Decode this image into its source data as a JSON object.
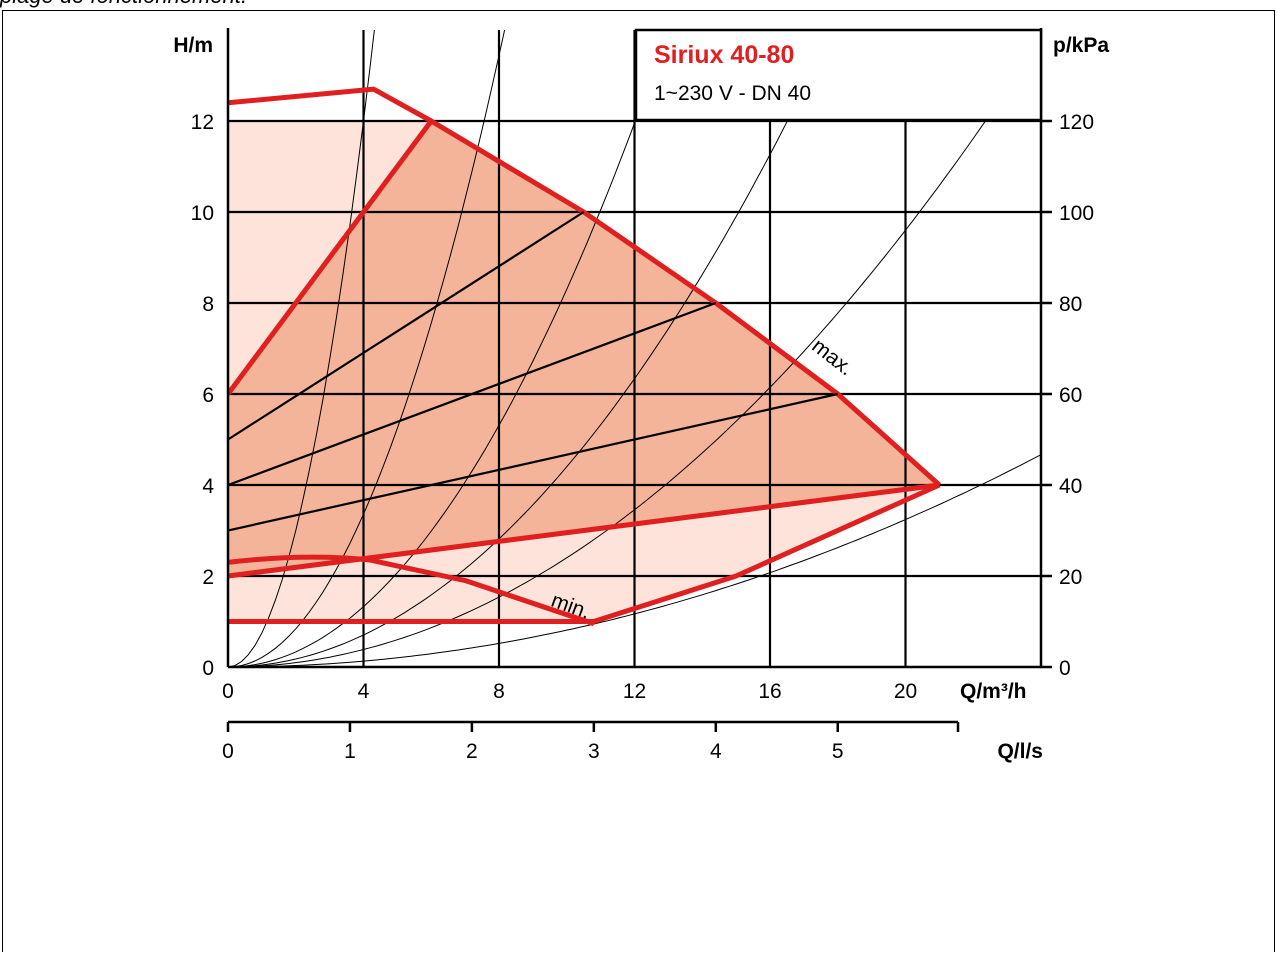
{
  "caption": "plage de fonctionnement.",
  "chart_data": {
    "type": "area",
    "title": "Siriux 40-80",
    "subtitle": "1~230 V - DN 40",
    "xlabel": "Q/m³/h",
    "x2label": "Q/l/s",
    "ylabel": "H/m",
    "y2label": "p/kPa",
    "xlim": [
      0,
      24
    ],
    "ylim": [
      0,
      14
    ],
    "x_ticks": [
      "0",
      "4",
      "8",
      "12",
      "16",
      "20"
    ],
    "x_tick_values": [
      0,
      4,
      8,
      12,
      16,
      20
    ],
    "x2_ticks": [
      "0",
      "1",
      "2",
      "3",
      "4",
      "5"
    ],
    "x2_tick_values": [
      0,
      1,
      2,
      3,
      4,
      5
    ],
    "y_ticks": [
      "0",
      "2",
      "4",
      "6",
      "8",
      "10",
      "12"
    ],
    "y_tick_values": [
      0,
      2,
      4,
      6,
      8,
      10,
      12
    ],
    "y2_ticks": [
      "0",
      "20",
      "40",
      "60",
      "80",
      "100",
      "120"
    ],
    "y2_tick_values": [
      0,
      2,
      4,
      6,
      8,
      10,
      12
    ],
    "grid": true,
    "annotations": [
      {
        "text": "max.",
        "x": 17.2,
        "y": 7.0,
        "angle": 38
      },
      {
        "text": "min.",
        "x": 9.5,
        "y": 1.35,
        "angle": 20
      }
    ],
    "colors": {
      "curve": "#e02020",
      "zone_dark": "#f4b49a",
      "zone_light": "#fde3da",
      "grid": "#000000"
    },
    "series": [
      {
        "role": "max",
        "x": [
          0,
          4.3,
          6.0,
          10.5,
          14.4,
          18.0,
          21.0
        ],
        "y": [
          12.4,
          12.7,
          12.0,
          10.0,
          8.0,
          6.0,
          4.0
        ]
      },
      {
        "role": "min",
        "x": [
          0,
          2.5,
          4.2,
          7.0,
          10.8
        ],
        "y": [
          2.3,
          2.4,
          2.35,
          1.9,
          0.95
        ]
      },
      {
        "role": "constant-pressure",
        "x": [
          0,
          10.5
        ],
        "y": [
          5.0,
          10.0
        ]
      },
      {
        "role": "constant-pressure",
        "x": [
          0,
          14.4
        ],
        "y": [
          4.0,
          8.0
        ]
      },
      {
        "role": "constant-pressure",
        "x": [
          0,
          18.0
        ],
        "y": [
          3.0,
          6.0
        ]
      },
      {
        "role": "proportional-pressure",
        "x": [
          0,
          6.0
        ],
        "y": [
          6.0,
          12.0
        ]
      },
      {
        "role": "proportional-pressure",
        "x": [
          0,
          21.0
        ],
        "y": [
          2.0,
          4.0
        ]
      },
      {
        "role": "lower-limit",
        "x": [
          0,
          10.8,
          15.0,
          21.0
        ],
        "y": [
          1.0,
          1.0,
          2.0,
          4.0
        ]
      }
    ],
    "system_curves_k": [
      0.75,
      0.21,
      0.083,
      0.044,
      0.024,
      0.0081
    ]
  }
}
